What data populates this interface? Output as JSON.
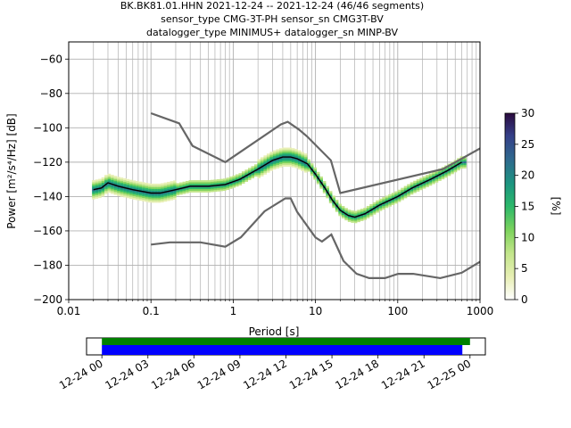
{
  "chart_data": {
    "type": "heatmap",
    "title_lines": [
      "BK.BK81.01.HHN   2021-12-24 -- 2021-12-24  (46/46 segments)",
      "sensor_type CMG-3T-PH sensor_sn CMG3T-BV",
      "datalogger_type MINIMUS+ datalogger_sn MINP-BV"
    ],
    "xlabel": "Period [s]",
    "ylabel": "Power [m²/s⁴/Hz] [dB]",
    "xscale": "log",
    "xlim": [
      0.01,
      1000
    ],
    "ylim": [
      -200,
      -50
    ],
    "x_ticks": [
      {
        "value": 0.01,
        "label": "0.01"
      },
      {
        "value": 0.1,
        "label": "0.1"
      },
      {
        "value": 1,
        "label": "1"
      },
      {
        "value": 10,
        "label": "10"
      },
      {
        "value": 100,
        "label": "100"
      },
      {
        "value": 1000,
        "label": "1000"
      }
    ],
    "y_ticks": [
      -200,
      -180,
      -160,
      -140,
      -120,
      -100,
      -80,
      -60
    ],
    "grid": true,
    "colorbar": {
      "label": "[%]",
      "min": 0,
      "max": 30,
      "ticks": [
        0,
        5,
        10,
        15,
        20,
        25,
        30
      ]
    },
    "mode_curve": {
      "period": [
        0.02,
        0.025,
        0.03,
        0.04,
        0.06,
        0.1,
        0.13,
        0.2,
        0.3,
        0.5,
        0.8,
        1.2,
        2,
        3,
        4,
        5,
        6,
        8,
        10,
        13,
        16,
        20,
        25,
        30,
        40,
        60,
        100,
        150,
        250,
        400,
        600
      ],
      "power": [
        -136,
        -135,
        -132,
        -134,
        -136,
        -138,
        -138,
        -136,
        -134,
        -134,
        -133,
        -130,
        -124,
        -119,
        -117,
        -117,
        -118,
        -121,
        -127,
        -135,
        -142,
        -148,
        -151,
        -152,
        -150,
        -145,
        -140,
        -135,
        -130,
        -125,
        -120
      ]
    },
    "nhnm": {
      "period": [
        0.1,
        0.22,
        0.32,
        0.8,
        3.8,
        4.6,
        6.3,
        7.9,
        15.4,
        20,
        354.8,
        1000
      ],
      "power": [
        -91.5,
        -97.4,
        -110.5,
        -120,
        -98,
        -96.5,
        -101,
        -105,
        -119,
        -138,
        -124,
        -112
      ]
    },
    "nlnm": {
      "period": [
        0.1,
        0.17,
        0.4,
        0.8,
        1.24,
        2.4,
        4.3,
        5,
        6,
        10,
        12,
        15.6,
        21.9,
        31.6,
        45,
        70,
        101,
        154,
        328,
        600,
        1000
      ],
      "power": [
        -168,
        -166.7,
        -166.7,
        -169.2,
        -163.7,
        -148.6,
        -141.1,
        -141.1,
        -149,
        -163.8,
        -166.2,
        -162.1,
        -177.5,
        -185,
        -187.5,
        -187.5,
        -185,
        -185,
        -187.5,
        -184.4,
        -178
      ]
    },
    "time_axis": {
      "tick_labels": [
        "12-24 00",
        "12-24 03",
        "12-24 06",
        "12-24 09",
        "12-24 12",
        "12-24 15",
        "12-24 18",
        "12-24 21",
        "12-25 00"
      ],
      "range_hours": [
        -1,
        25
      ],
      "coverage_green_hours": [
        0,
        24
      ],
      "coverage_blue_hours": [
        0,
        23.5
      ]
    }
  }
}
